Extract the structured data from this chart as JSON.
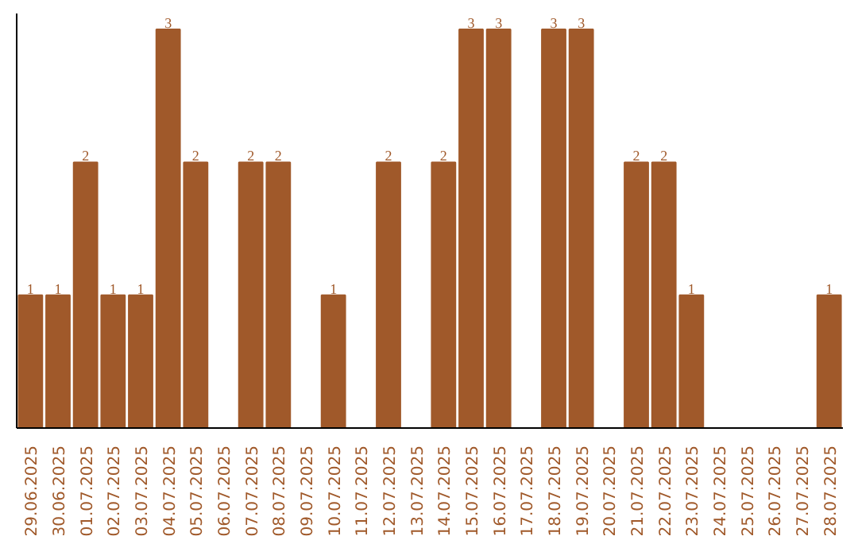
{
  "chart_data": {
    "type": "bar",
    "categories": [
      "29.06.2025",
      "30.06.2025",
      "01.07.2025",
      "02.07.2025",
      "03.07.2025",
      "04.07.2025",
      "05.07.2025",
      "06.07.2025",
      "07.07.2025",
      "08.07.2025",
      "09.07.2025",
      "10.07.2025",
      "11.07.2025",
      "12.07.2025",
      "13.07.2025",
      "14.07.2025",
      "15.07.2025",
      "16.07.2025",
      "17.07.2025",
      "18.07.2025",
      "19.07.2025",
      "20.07.2025",
      "21.07.2025",
      "22.07.2025",
      "23.07.2025",
      "24.07.2025",
      "25.07.2025",
      "26.07.2025",
      "27.07.2025",
      "28.07.2025"
    ],
    "values": [
      1,
      1,
      2,
      1,
      1,
      3,
      2,
      0,
      2,
      2,
      0,
      1,
      0,
      2,
      0,
      2,
      3,
      3,
      0,
      3,
      3,
      0,
      2,
      2,
      1,
      0,
      0,
      0,
      0,
      1
    ],
    "value_labels": [
      "1",
      "1",
      "2",
      "1",
      "1",
      "3",
      "2",
      null,
      "2",
      "2",
      null,
      "1",
      null,
      "2",
      null,
      "2",
      "3",
      "3",
      null,
      "3",
      "3",
      null,
      "2",
      "2",
      "1",
      null,
      null,
      null,
      null,
      "1"
    ],
    "color": "#a0592a"
  }
}
